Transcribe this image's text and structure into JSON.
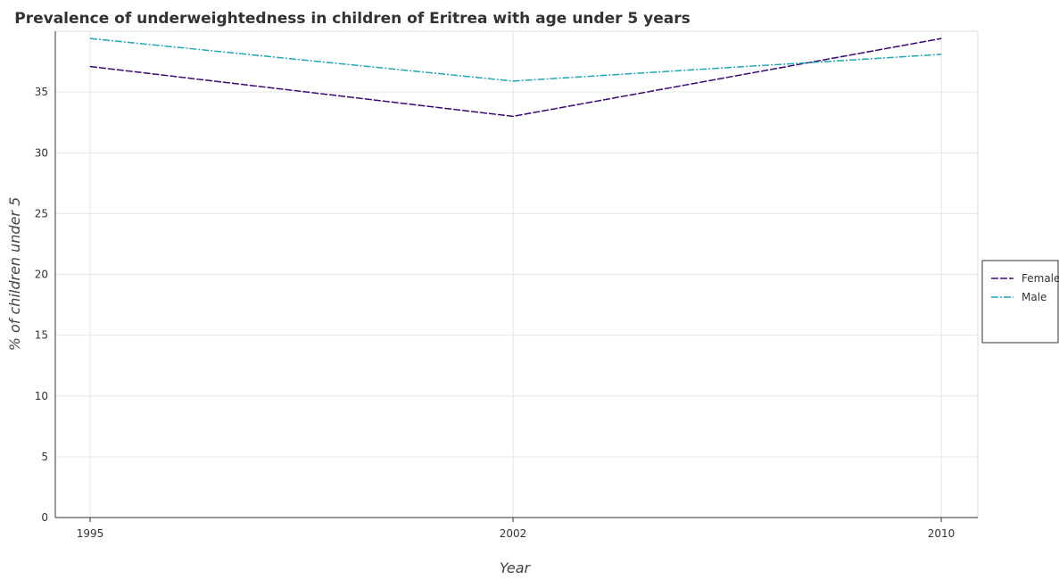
{
  "chart_data": {
    "type": "line",
    "title": "Prevalence of underweightedness in children of Eritrea with age under 5 years",
    "xlabel": "Year",
    "ylabel": "% of children under 5",
    "categories": [
      "1995",
      "2002",
      "2010"
    ],
    "series": [
      {
        "name": "Female",
        "values": [
          37.1,
          33.0,
          39.4
        ],
        "color": "#3b0a6e"
      },
      {
        "name": "Male",
        "values": [
          39.4,
          35.9,
          38.1
        ],
        "color": "#26a4b0"
      }
    ],
    "ylim": [
      0,
      40
    ],
    "yticks": [
      0,
      5,
      10,
      15,
      20,
      25,
      30,
      35
    ],
    "grid": true,
    "legend_position": "right"
  }
}
